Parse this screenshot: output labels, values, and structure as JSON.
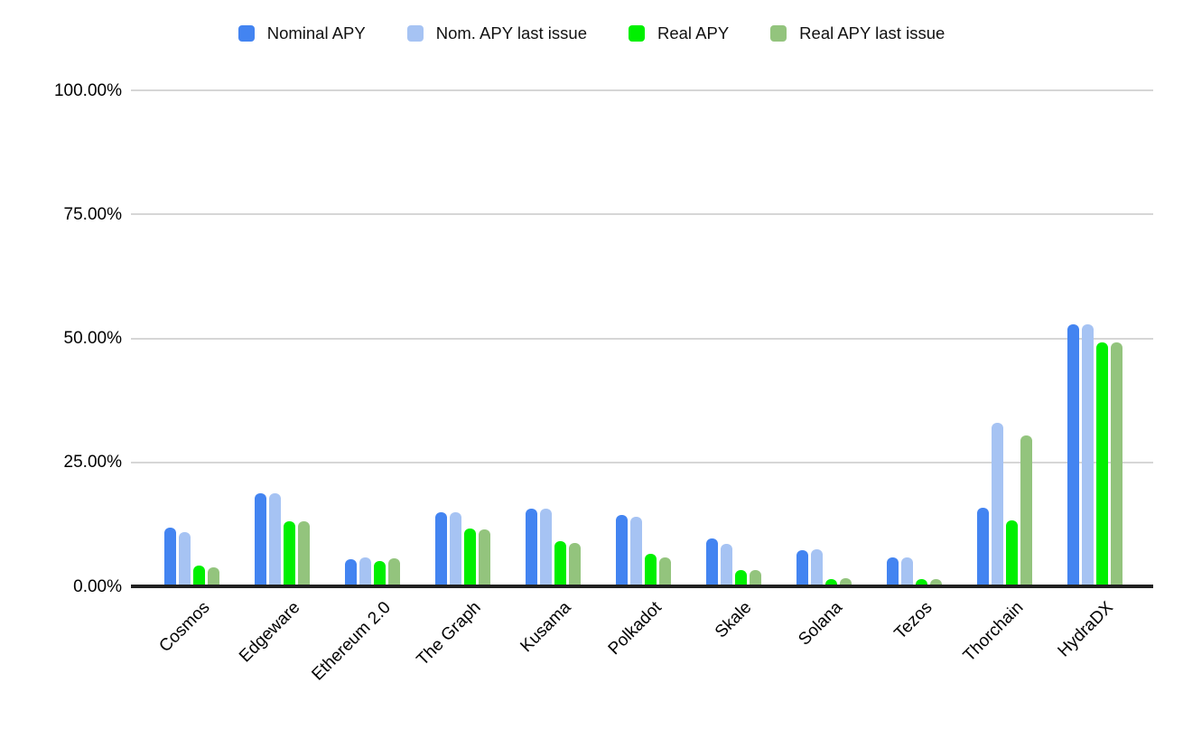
{
  "chart_data": {
    "type": "bar",
    "title": "",
    "categories": [
      "Cosmos",
      "Edgeware",
      "Ethereum 2.0",
      "The Graph",
      "Kusama",
      "Polkadot",
      "Skale",
      "Solana",
      "Tezos",
      "Thorchain",
      "HydraDX"
    ],
    "series": [
      {
        "name": "Nominal APY",
        "color": "#4384f1",
        "values": [
          11.9,
          18.8,
          5.5,
          14.9,
          15.7,
          14.4,
          9.7,
          7.3,
          5.8,
          15.8,
          52.8
        ]
      },
      {
        "name": "Nom. APY last issue",
        "color": "#a6c3f3",
        "values": [
          10.9,
          18.8,
          5.9,
          14.9,
          15.7,
          14.1,
          8.6,
          7.4,
          5.8,
          32.9,
          52.8
        ]
      },
      {
        "name": "Real APY",
        "color": "#00f000",
        "values": [
          4.2,
          13.2,
          5.2,
          11.7,
          9.1,
          6.6,
          3.2,
          1.5,
          1.5,
          13.3,
          49.2
        ]
      },
      {
        "name": "Real APY last issue",
        "color": "#93c47d",
        "values": [
          3.8,
          13.2,
          5.6,
          11.5,
          8.8,
          5.9,
          3.2,
          1.6,
          1.5,
          30.4,
          49.2
        ]
      }
    ],
    "y_axis": {
      "ticks": [
        {
          "label": "0.00%",
          "value": 0
        },
        {
          "label": "25.00%",
          "value": 25
        },
        {
          "label": "50.00%",
          "value": 50
        },
        {
          "label": "75.00%",
          "value": 75
        },
        {
          "label": "100.00%",
          "value": 100
        }
      ],
      "max": 100
    },
    "legend_position": "top",
    "grid": true,
    "colors": {
      "gridline": "#d6d6d6",
      "axis_line": "#212121",
      "text": "#000000",
      "background": "#ffffff"
    }
  }
}
